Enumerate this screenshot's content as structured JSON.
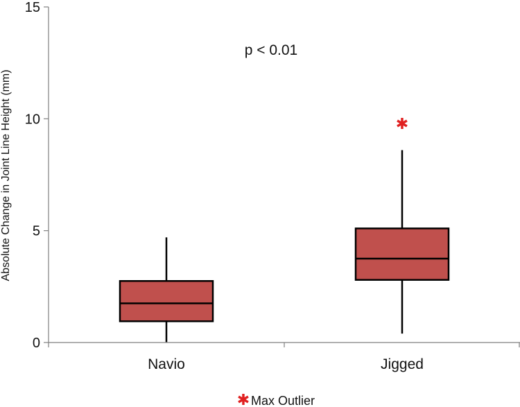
{
  "colors": {
    "box_fill": "#c0504d",
    "outlier": "#e02020",
    "axis": "#808080",
    "stroke": "#000000"
  },
  "legend": {
    "marker": "✱",
    "label": "Max Outlier",
    "position": "bottom-center"
  },
  "chart_data": {
    "type": "box",
    "ylabel": "Absolute Change in Joint Line Height (mm)",
    "xlabel": "",
    "ylim": [
      0,
      15
    ],
    "yticks": [
      0,
      5,
      10,
      15
    ],
    "grid": false,
    "annotation": "p < 0.01",
    "categories": [
      "Navio",
      "Jigged"
    ],
    "boxes": [
      {
        "name": "Navio",
        "min": 0.02,
        "q1": 0.95,
        "median": 1.75,
        "q3": 2.75,
        "max": 4.7
      },
      {
        "name": "Jigged",
        "min": 0.4,
        "q1": 2.8,
        "median": 3.75,
        "q3": 5.1,
        "max": 8.6,
        "outlier": 9.8
      }
    ]
  }
}
